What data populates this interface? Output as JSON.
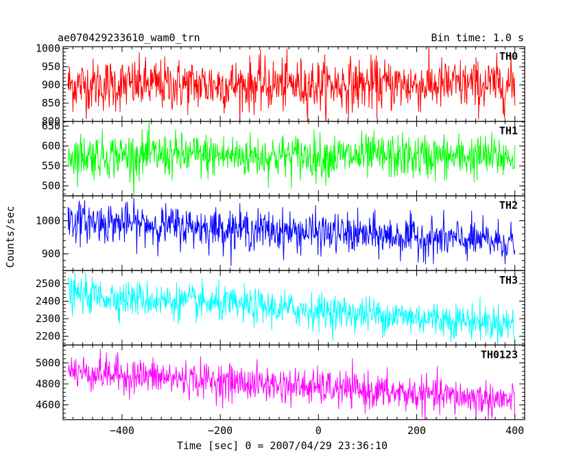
{
  "header": {
    "title": "ae070429233610_wam0_trn",
    "bin_time": "Bin time: 1.0 s"
  },
  "chart_data": {
    "type": "line",
    "xlabel": "Time [sec] 0 = 2007/04/29 23:36:10",
    "ylabel": "Counts/sec",
    "xlim": [
      -520,
      420
    ],
    "x_ticks": [
      -400,
      -200,
      0,
      200,
      400
    ],
    "x_tick_labels": [
      "−400",
      "−200",
      "0",
      "200",
      "400"
    ],
    "x_range_data": [
      -510,
      400
    ],
    "bin_seconds": 1.0,
    "grid": false,
    "panels": [
      {
        "name": "TH0",
        "color": "#ff0000",
        "ylim": [
          800,
          1005
        ],
        "y_ticks": [
          800,
          850,
          900,
          950,
          1000
        ],
        "mean_start": 900,
        "mean_end": 900,
        "noise_std": 36
      },
      {
        "name": "TH1",
        "color": "#00ff00",
        "ylim": [
          475,
          662
        ],
        "y_ticks": [
          500,
          550,
          600,
          650
        ],
        "mean_start": 577,
        "mean_end": 572,
        "noise_std": 28
      },
      {
        "name": "TH2",
        "color": "#0000ff",
        "ylim": [
          850,
          1075
        ],
        "y_ticks": [
          900,
          1000
        ],
        "mean_start": 1000,
        "mean_end": 935,
        "noise_std": 30
      },
      {
        "name": "TH3",
        "color": "#00ffff",
        "ylim": [
          2150,
          2575
        ],
        "y_ticks": [
          2200,
          2300,
          2400,
          2500
        ],
        "mean_start": 2440,
        "mean_end": 2270,
        "noise_std": 50
      },
      {
        "name": "TH0123",
        "color": "#ff00ff",
        "ylim": [
          4460,
          5170
        ],
        "y_ticks": [
          4600,
          4800,
          5000
        ],
        "mean_start": 4920,
        "mean_end": 4640,
        "noise_std": 85
      }
    ]
  }
}
